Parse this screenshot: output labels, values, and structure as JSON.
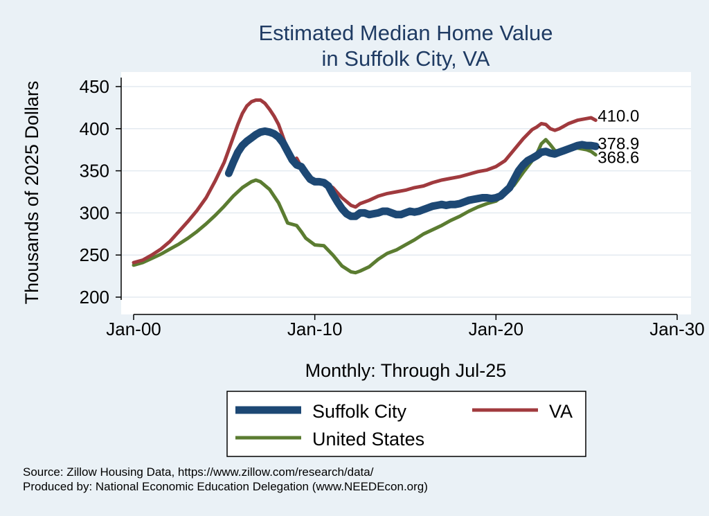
{
  "chart_data": {
    "type": "line",
    "title": [
      "Estimated Median Home Value",
      "in Suffolk City, VA"
    ],
    "xlabel": "Monthly: Through Jul-25",
    "ylabel": "Thousands of 2025 Dollars",
    "xlim": [
      2000.0,
      2030.0
    ],
    "ylim": [
      200,
      450
    ],
    "x_ticks": [
      "Jan-00",
      "Jan-10",
      "Jan-20",
      "Jan-30"
    ],
    "y_ticks": [
      200,
      250,
      300,
      350,
      400,
      450
    ],
    "grid": "horizontal",
    "legend": "bottom",
    "series": [
      {
        "name": "Suffolk City",
        "color": "#1d4874",
        "end_label": "378.9",
        "points": [
          [
            2005.25,
            347
          ],
          [
            2005.5,
            360
          ],
          [
            2005.75,
            372
          ],
          [
            2006.0,
            380
          ],
          [
            2006.25,
            385
          ],
          [
            2006.5,
            389
          ],
          [
            2006.75,
            393
          ],
          [
            2007.0,
            396
          ],
          [
            2007.25,
            397
          ],
          [
            2007.5,
            396
          ],
          [
            2007.75,
            394
          ],
          [
            2008.0,
            390
          ],
          [
            2008.25,
            383
          ],
          [
            2008.5,
            373
          ],
          [
            2008.75,
            363
          ],
          [
            2009.0,
            357
          ],
          [
            2009.25,
            355
          ],
          [
            2009.5,
            347
          ],
          [
            2009.75,
            340
          ],
          [
            2010.0,
            337
          ],
          [
            2010.25,
            337
          ],
          [
            2010.5,
            336
          ],
          [
            2010.75,
            332
          ],
          [
            2011.0,
            322
          ],
          [
            2011.25,
            313
          ],
          [
            2011.5,
            305
          ],
          [
            2011.75,
            299
          ],
          [
            2012.0,
            296
          ],
          [
            2012.25,
            296
          ],
          [
            2012.5,
            300
          ],
          [
            2012.75,
            300
          ],
          [
            2013.0,
            298
          ],
          [
            2013.25,
            299
          ],
          [
            2013.5,
            300
          ],
          [
            2013.75,
            302
          ],
          [
            2014.0,
            302
          ],
          [
            2014.25,
            300
          ],
          [
            2014.5,
            298
          ],
          [
            2014.75,
            298
          ],
          [
            2015.0,
            300
          ],
          [
            2015.25,
            302
          ],
          [
            2015.5,
            301
          ],
          [
            2015.75,
            302
          ],
          [
            2016.0,
            304
          ],
          [
            2016.25,
            306
          ],
          [
            2016.5,
            308
          ],
          [
            2016.75,
            309
          ],
          [
            2017.0,
            310
          ],
          [
            2017.25,
            309
          ],
          [
            2017.5,
            310
          ],
          [
            2017.75,
            310
          ],
          [
            2018.0,
            311
          ],
          [
            2018.25,
            313
          ],
          [
            2018.5,
            315
          ],
          [
            2018.75,
            316
          ],
          [
            2019.0,
            317
          ],
          [
            2019.25,
            318
          ],
          [
            2019.5,
            318
          ],
          [
            2019.75,
            317
          ],
          [
            2020.0,
            318
          ],
          [
            2020.25,
            320
          ],
          [
            2020.5,
            325
          ],
          [
            2020.75,
            330
          ],
          [
            2021.0,
            340
          ],
          [
            2021.25,
            350
          ],
          [
            2021.5,
            357
          ],
          [
            2021.75,
            362
          ],
          [
            2022.0,
            365
          ],
          [
            2022.25,
            368
          ],
          [
            2022.5,
            372
          ],
          [
            2022.75,
            373
          ],
          [
            2023.0,
            371
          ],
          [
            2023.25,
            370
          ],
          [
            2023.5,
            372
          ],
          [
            2023.75,
            374
          ],
          [
            2024.0,
            376
          ],
          [
            2024.25,
            378
          ],
          [
            2024.5,
            380
          ],
          [
            2024.75,
            381
          ],
          [
            2025.0,
            380
          ],
          [
            2025.25,
            380
          ],
          [
            2025.5,
            379
          ]
        ]
      },
      {
        "name": "VA",
        "color": "#a03a3e",
        "end_label": "410.0",
        "points": [
          [
            2000.0,
            241
          ],
          [
            2000.5,
            244
          ],
          [
            2001.0,
            250
          ],
          [
            2001.5,
            257
          ],
          [
            2002.0,
            266
          ],
          [
            2002.5,
            278
          ],
          [
            2003.0,
            290
          ],
          [
            2003.5,
            303
          ],
          [
            2004.0,
            318
          ],
          [
            2004.5,
            338
          ],
          [
            2005.0,
            360
          ],
          [
            2005.25,
            375
          ],
          [
            2005.5,
            390
          ],
          [
            2005.75,
            405
          ],
          [
            2006.0,
            418
          ],
          [
            2006.25,
            427
          ],
          [
            2006.5,
            432
          ],
          [
            2006.75,
            434
          ],
          [
            2007.0,
            434
          ],
          [
            2007.25,
            430
          ],
          [
            2007.5,
            423
          ],
          [
            2007.75,
            415
          ],
          [
            2008.0,
            405
          ],
          [
            2008.25,
            390
          ],
          [
            2008.5,
            375
          ],
          [
            2008.75,
            362
          ],
          [
            2009.0,
            365
          ],
          [
            2009.25,
            355
          ],
          [
            2009.5,
            347
          ],
          [
            2009.75,
            341
          ],
          [
            2010.0,
            337
          ],
          [
            2010.5,
            336
          ],
          [
            2011.0,
            330
          ],
          [
            2011.5,
            318
          ],
          [
            2012.0,
            309
          ],
          [
            2012.25,
            307
          ],
          [
            2012.5,
            311
          ],
          [
            2013.0,
            315
          ],
          [
            2013.5,
            320
          ],
          [
            2014.0,
            323
          ],
          [
            2014.5,
            325
          ],
          [
            2015.0,
            327
          ],
          [
            2015.5,
            330
          ],
          [
            2016.0,
            332
          ],
          [
            2016.5,
            336
          ],
          [
            2017.0,
            339
          ],
          [
            2017.5,
            341
          ],
          [
            2018.0,
            343
          ],
          [
            2018.5,
            346
          ],
          [
            2019.0,
            349
          ],
          [
            2019.5,
            351
          ],
          [
            2020.0,
            355
          ],
          [
            2020.5,
            362
          ],
          [
            2021.0,
            375
          ],
          [
            2021.5,
            388
          ],
          [
            2022.0,
            399
          ],
          [
            2022.25,
            402
          ],
          [
            2022.5,
            406
          ],
          [
            2022.75,
            405
          ],
          [
            2023.0,
            400
          ],
          [
            2023.25,
            398
          ],
          [
            2023.5,
            400
          ],
          [
            2023.75,
            403
          ],
          [
            2024.0,
            406
          ],
          [
            2024.5,
            410
          ],
          [
            2025.0,
            412
          ],
          [
            2025.25,
            413
          ],
          [
            2025.5,
            410
          ]
        ]
      },
      {
        "name": "United States",
        "color": "#5b7c31",
        "end_label": "368.6",
        "points": [
          [
            2000.0,
            238
          ],
          [
            2000.5,
            241
          ],
          [
            2001.0,
            246
          ],
          [
            2001.5,
            251
          ],
          [
            2002.0,
            257
          ],
          [
            2002.5,
            263
          ],
          [
            2003.0,
            270
          ],
          [
            2003.5,
            278
          ],
          [
            2004.0,
            287
          ],
          [
            2004.5,
            297
          ],
          [
            2005.0,
            308
          ],
          [
            2005.5,
            320
          ],
          [
            2006.0,
            330
          ],
          [
            2006.5,
            337
          ],
          [
            2006.75,
            339
          ],
          [
            2007.0,
            337
          ],
          [
            2007.5,
            328
          ],
          [
            2008.0,
            312
          ],
          [
            2008.25,
            300
          ],
          [
            2008.5,
            288
          ],
          [
            2009.0,
            285
          ],
          [
            2009.25,
            278
          ],
          [
            2009.5,
            270
          ],
          [
            2010.0,
            262
          ],
          [
            2010.5,
            261
          ],
          [
            2011.0,
            250
          ],
          [
            2011.5,
            237
          ],
          [
            2012.0,
            230
          ],
          [
            2012.25,
            229
          ],
          [
            2012.5,
            231
          ],
          [
            2013.0,
            236
          ],
          [
            2013.5,
            245
          ],
          [
            2014.0,
            252
          ],
          [
            2014.5,
            256
          ],
          [
            2015.0,
            262
          ],
          [
            2015.5,
            268
          ],
          [
            2016.0,
            275
          ],
          [
            2016.5,
            280
          ],
          [
            2017.0,
            285
          ],
          [
            2017.5,
            291
          ],
          [
            2018.0,
            296
          ],
          [
            2018.5,
            302
          ],
          [
            2019.0,
            307
          ],
          [
            2019.5,
            311
          ],
          [
            2020.0,
            314
          ],
          [
            2020.5,
            322
          ],
          [
            2021.0,
            333
          ],
          [
            2021.5,
            348
          ],
          [
            2022.0,
            362
          ],
          [
            2022.25,
            370
          ],
          [
            2022.5,
            382
          ],
          [
            2022.75,
            387
          ],
          [
            2023.0,
            381
          ],
          [
            2023.25,
            374
          ],
          [
            2023.5,
            373
          ],
          [
            2023.75,
            374
          ],
          [
            2024.0,
            375
          ],
          [
            2024.5,
            377
          ],
          [
            2025.0,
            375
          ],
          [
            2025.25,
            373
          ],
          [
            2025.5,
            369
          ]
        ]
      }
    ]
  },
  "source_lines": [
    "Source: Zillow Housing Data, https://www.zillow.com/research/data/",
    "Produced by: National Economic Education Delegation (www.NEEDEcon.org)"
  ]
}
